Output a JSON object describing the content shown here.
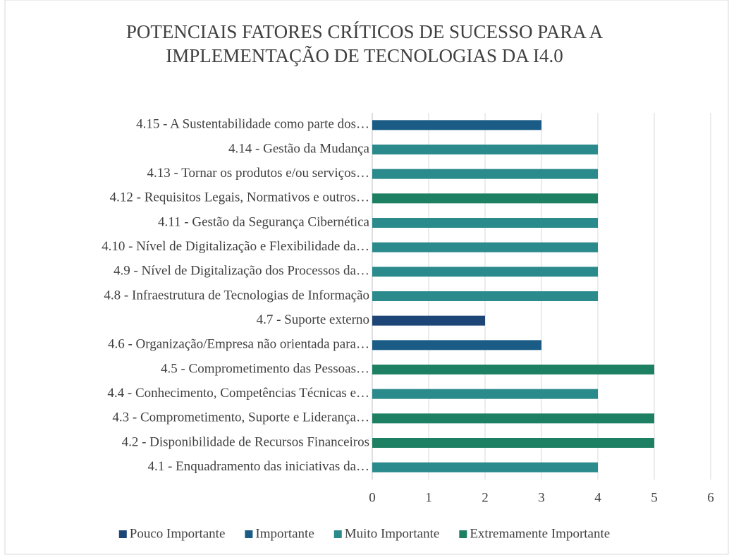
{
  "chart_data": {
    "type": "bar",
    "orientation": "horizontal",
    "title": [
      "POTENCIAIS FATORES CRÍTICOS DE SUCESSO PARA A",
      "IMPLEMENTAÇÃO DE TECNOLOGIAS DA I4.0"
    ],
    "categories": [
      "4.1 - Enquadramento das iniciativas da…",
      "4.2 - Disponibilidade de Recursos Financeiros",
      "4.3 - Comprometimento, Suporte e Liderança…",
      "4.4 - Conhecimento, Competências Técnicas e…",
      "4.5 - Comprometimento das Pessoas…",
      "4.6 - Organização/Empresa não orientada para…",
      "4.7 - Suporte externo",
      "4.8 - Infraestrutura de Tecnologias de Informação",
      "4.9 - Nível de Digitalização dos Processos da…",
      "4.10 - Nível de Digitalização e Flexibilidade da…",
      "4.11 - Gestão da Segurança Cibernética",
      "4.12 - Requisitos Legais, Normativos e outros…",
      "4.13 - Tornar os produtos e/ou serviços…",
      "4.14 - Gestão da Mudança",
      "4.15 - A Sustentabilidade como parte dos…"
    ],
    "series": [
      {
        "name": "Pouco Importante",
        "color": "#1d4677",
        "values": [
          null,
          null,
          null,
          null,
          null,
          null,
          2,
          null,
          null,
          null,
          null,
          null,
          null,
          null,
          null
        ]
      },
      {
        "name": "Importante",
        "color": "#1b5c86",
        "values": [
          null,
          null,
          null,
          null,
          null,
          3,
          null,
          null,
          null,
          null,
          null,
          null,
          null,
          null,
          3
        ]
      },
      {
        "name": "Muito Importante",
        "color": "#2a8a8c",
        "values": [
          4,
          null,
          null,
          4,
          null,
          null,
          null,
          4,
          4,
          4,
          4,
          null,
          4,
          4,
          null
        ]
      },
      {
        "name": "Extremamente Importante",
        "color": "#1e8063",
        "values": [
          null,
          5,
          5,
          null,
          5,
          null,
          null,
          null,
          null,
          null,
          null,
          4,
          null,
          null,
          null
        ]
      }
    ],
    "xlim": [
      0,
      6
    ],
    "xticks": [
      0,
      1,
      2,
      3,
      4,
      5,
      6
    ],
    "grid": true,
    "legend": "bottom"
  }
}
